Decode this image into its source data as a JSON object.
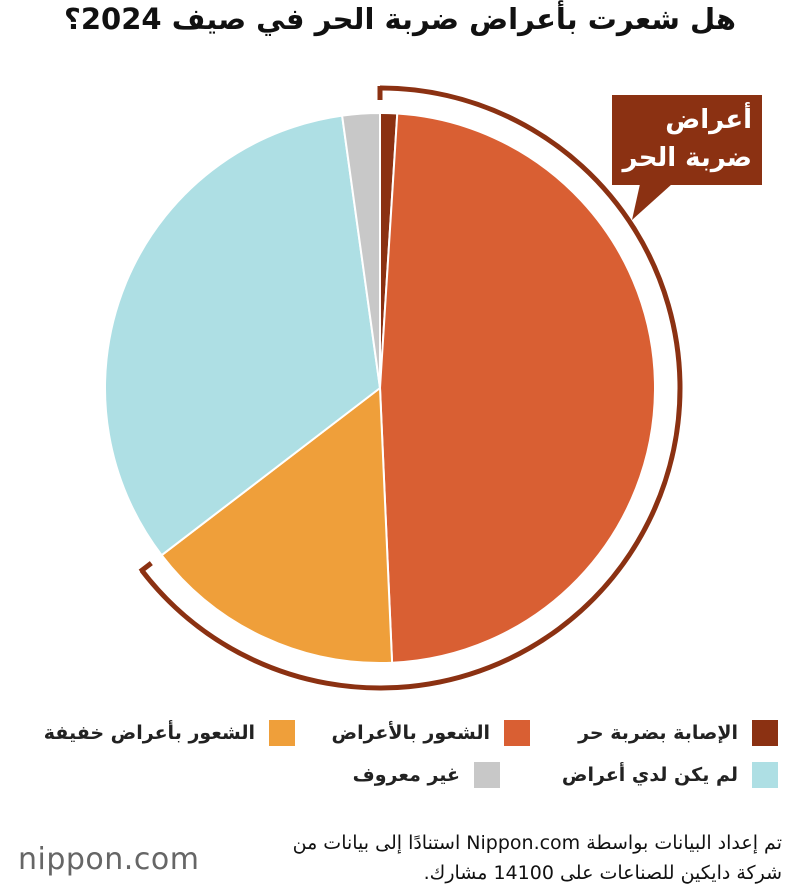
{
  "chart_data": {
    "type": "pie",
    "title": "هل شعرت بأعراض ضربة الحر في صيف 2024؟",
    "categories": [
      "الإصابة بضربة حر",
      "الشعور بالأعراض",
      "الشعور بأعراض خفيفة",
      "لم يكن لدي أعراض",
      "غير معروف"
    ],
    "values": [
      1.0,
      48.3,
      15.3,
      33.2,
      2.2
    ],
    "colors": [
      "#8b3112",
      "#d95f33",
      "#ef9f3a",
      "#aedfe4",
      "#c8c8c8"
    ],
    "annotation": "أعراض ضربة الحر",
    "source": "تم إعداد البيانات بواسطة Nippon.com استنادًا إلى بيانات من شركة دايكين للصناعات على 14100 مشارك.",
    "logo": "nippon.com"
  }
}
